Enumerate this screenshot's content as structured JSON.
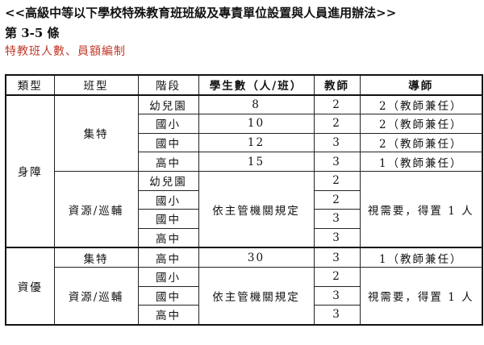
{
  "document": {
    "title": "<<高級中等以下學校特殊教育班班級及專責單位設置與人員進用辦法>>",
    "article": "第 3-5 條",
    "subtitle": "特教班人數、員額編制",
    "accent_color": "#c0392b"
  },
  "table": {
    "headers": [
      "類型",
      "班型",
      "階段",
      "學生數（人/班）",
      "教師",
      "導師"
    ],
    "groups": [
      {
        "type": "身障",
        "classes": [
          {
            "class_type": "集特",
            "rows": [
              {
                "stage": "幼兒園",
                "students": "8",
                "teachers": "2",
                "mentor": "2（教師兼任）"
              },
              {
                "stage": "國小",
                "students": "10",
                "teachers": "2",
                "mentor": "2（教師兼任）"
              },
              {
                "stage": "國中",
                "students": "12",
                "teachers": "3",
                "mentor": "2（教師兼任）"
              },
              {
                "stage": "高中",
                "students": "15",
                "teachers": "3",
                "mentor": "1（教師兼任）"
              }
            ]
          },
          {
            "class_type": "資源/巡輔",
            "students": "依主管機關規定",
            "mentor": "視需要，得置 1 人",
            "rows": [
              {
                "stage": "幼兒園",
                "teachers": "2"
              },
              {
                "stage": "國小",
                "teachers": "2"
              },
              {
                "stage": "國中",
                "teachers": "3"
              },
              {
                "stage": "高中",
                "teachers": "3"
              }
            ]
          }
        ]
      },
      {
        "type": "資優",
        "classes": [
          {
            "class_type": "集特",
            "rows": [
              {
                "stage": "高中",
                "students": "30",
                "teachers": "3",
                "mentor": "1（教師兼任）"
              }
            ]
          },
          {
            "class_type": "資源/巡輔",
            "students": "依主管機關規定",
            "mentor": "視需要，得置 1 人",
            "rows": [
              {
                "stage": "國小",
                "teachers": "2"
              },
              {
                "stage": "國中",
                "teachers": "3"
              },
              {
                "stage": "高中",
                "teachers": "3"
              }
            ]
          }
        ]
      }
    ]
  }
}
